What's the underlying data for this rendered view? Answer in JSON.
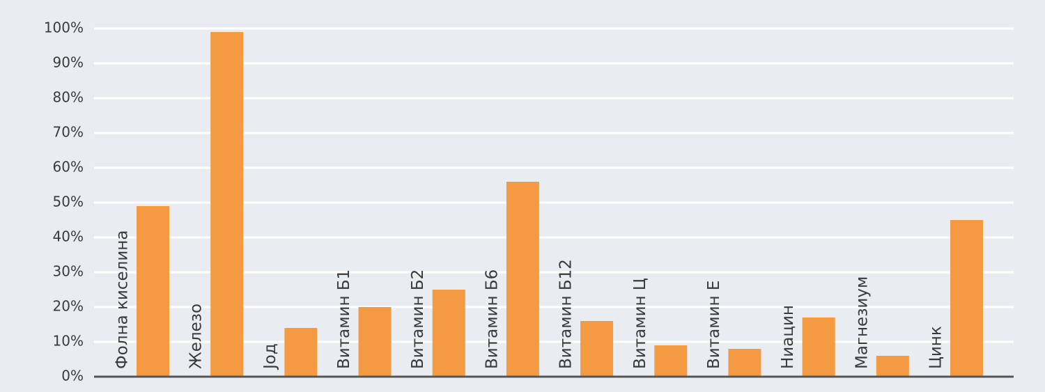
{
  "chart_data": {
    "type": "bar",
    "categories": [
      "Фолна киселина",
      "Железо",
      "Јод",
      "Витамин Б1",
      "Витамин Б2",
      "Витамин Б6",
      "Витамин Б12",
      "Витамин Ц",
      "Витамин Е",
      "Ниацин",
      "Магнезиум",
      "Цинк"
    ],
    "values": [
      49,
      99,
      14,
      20,
      25,
      56,
      16,
      9,
      8,
      17,
      6,
      45
    ],
    "color": "#f39a43",
    "ylim": [
      0,
      100
    ],
    "yticks": [
      {
        "value": 0,
        "label": "0%"
      },
      {
        "value": 10,
        "label": "10%"
      },
      {
        "value": 20,
        "label": "20%"
      },
      {
        "value": 30,
        "label": "30%"
      },
      {
        "value": 40,
        "label": "40%"
      },
      {
        "value": 50,
        "label": "50%"
      },
      {
        "value": 60,
        "label": "60%"
      },
      {
        "value": 70,
        "label": "70%"
      },
      {
        "value": 80,
        "label": "80%"
      },
      {
        "value": 90,
        "label": "90%"
      },
      {
        "value": 100,
        "label": "100%"
      }
    ],
    "grid": true
  }
}
